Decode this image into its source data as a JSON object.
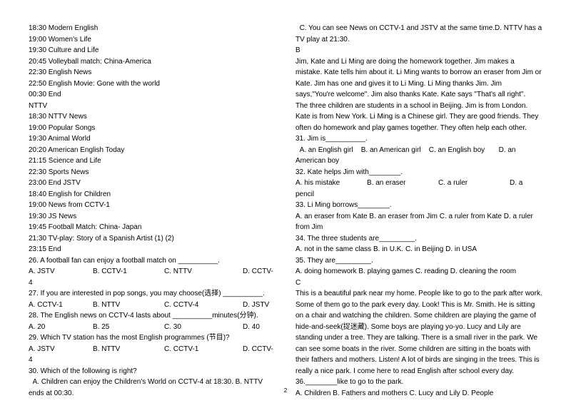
{
  "left": {
    "schedule": [
      "18:30 Modern English",
      "19:00 Women's Life",
      "19:30 Culture and Life",
      "20:45 Volleyball match: China-America",
      "22:30 English News",
      "22:50 English Movie: Gone with the world",
      "00:30 End",
      "NTTV",
      "18:30 NTTV News",
      "19:00 Popular Songs",
      "19:30 Animal World",
      "20:20 American English Today",
      "21:15 Science and Life",
      "22:30 Sports News",
      "23:00 End JSTV",
      "18:40 English for Children",
      "19:00 News from CCTV-1",
      "19:30 JS News",
      "19:45 Football Match: China- Japan",
      "21:30 TV-play: Story of a Spanish Artist (1) (2)",
      "23:15 End"
    ],
    "q26": "26. A football fan can enjoy a football match on __________.",
    "q26a": "A. JSTV",
    "q26b": "B. CCTV-1",
    "q26c": "C. NTTV",
    "q26d": "D. CCTV-4",
    "q27": "27. If you are interested in pop songs, you may choose(选择) __________.",
    "q27a": "A. CCTV-1",
    "q27b": "B. NTTV",
    "q27c": "C. CCTV-4",
    "q27d": "D. JSTV",
    "q28": "28. The English news on CCTV-4 lasts about __________minutes(分钟).",
    "q28a": "A. 20",
    "q28b": "B. 25",
    "q28c": "C. 30",
    "q28d": "D. 40",
    "q29": "29. Which TV station has the most English programmes (节目)?",
    "q29a": "A. JSTV",
    "q29b": "B. NTTV",
    "q29c": "C. CCTV-1",
    "q29d": "D. CCTV-4",
    "q30": "30. Which of the following is right?",
    "q30detail": "  A. Children can enjoy the Children's World on CCTV-4 at 18:30. B. NTTV ends at 00:30."
  },
  "right": {
    "q30c": "  C. You can see News on CCTV-1 and JSTV at the same time.D. NTTV has a TV play at 21:30.",
    "secB": "B",
    "p1": "Jim, Kate and Li Ming are doing the homework together. Jim makes a mistake. Kate tells him about it. Li Ming wants to borrow an eraser from Jim or Kate. Jim has one and gives it to Li Ming. Li Ming thanks Jim. Jim",
    "p2": "says,\"You're welcome\". Jim also thanks Kate. Kate says \"That's all right\".",
    "p3": "The three children are students in a school in Beijing. Jim is from London. Kate is from New York. Li Ming is a Chinese girl. They are good friends. They often do homework and play games together. They often help each other.",
    "q31": "31. Jim is__________.",
    "q31opts": "  A. an English girl    B. an American girl    C. an English boy       D. an American boy",
    "q32": "32. Kate helps Jim with________.",
    "q32a": "A. his mistake",
    "q32b": "B. an eraser",
    "q32c": "C. a ruler",
    "q32d": "D. a pencil",
    "q33": "33. Li Ming borrows________.",
    "q33opts": "A. an eraser from Kate   B. an eraser from Jim C. a ruler from Kate   D. a ruler from Jim",
    "q34": "34. The three students are_________.",
    "q34opts": "A. not in the same class    B. in U.K.    C. in Beijing     D. in USA",
    "q35": "35. They are_________.",
    "q35opts": "A. doing homework    B. playing games    C. reading     D. cleaning the room",
    "secC": "C",
    "pc": "This is a beautiful park near my home. People like to go to the park after work. Some of them go to the park every day. Look! This is Mr. Smith. He is sitting on a chair and watching the children. Some children are playing the game of hide-and-seek(捉迷藏).  Some boys are playing yo-yo. Lucy and Lily are standing under a tree. They are talking. There is a small river in the park. We can see some boats in the river. Some children are sitting in the boats with their fathers and mothers. Listen! A lot of birds are singing in the trees. This is really a nice park. I come here to read English after school every day.",
    "q36": "36.________like to go to the park.",
    "q36opts": "A. Children     B. Fathers and mothers     C. Lucy and Lily       D. People"
  },
  "pagenum": "2"
}
